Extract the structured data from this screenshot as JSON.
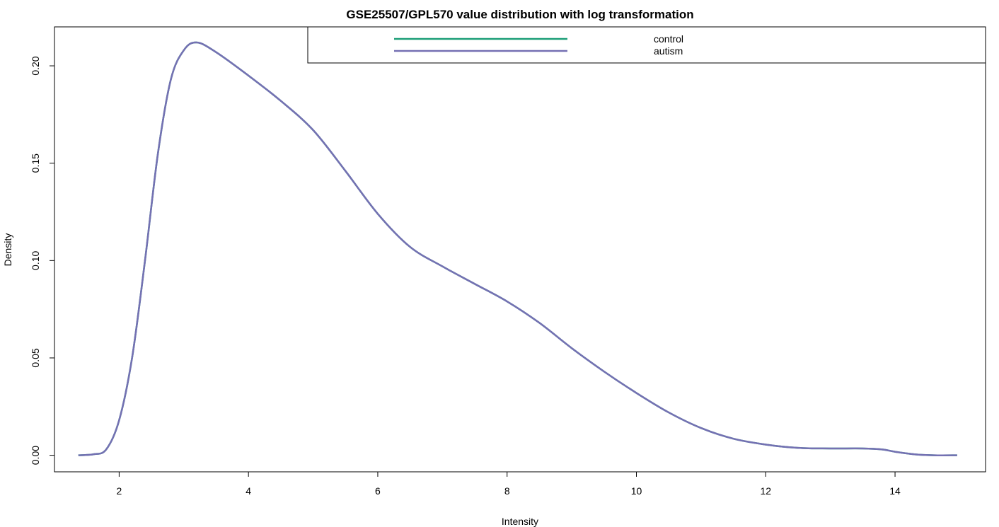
{
  "chart_data": {
    "type": "line",
    "title": "GSE25507/GPL570 value distribution with log transformation",
    "xlabel": "Intensity",
    "ylabel": "Density",
    "xlim": [
      1.0,
      15.4
    ],
    "ylim": [
      -0.0085,
      0.22
    ],
    "xticks": [
      2,
      4,
      6,
      8,
      10,
      12,
      14
    ],
    "xtick_labels": [
      "2",
      "4",
      "6",
      "8",
      "10",
      "12",
      "14"
    ],
    "yticks": [
      0.0,
      0.05,
      0.1,
      0.15,
      0.2
    ],
    "ytick_labels": [
      "0.00",
      "0.05",
      "0.10",
      "0.15",
      "0.20"
    ],
    "grid": false,
    "legend_position": "top-right",
    "legend": [
      {
        "label": "control",
        "color": "#1b9e77"
      },
      {
        "label": "autism",
        "color": "#7570b3"
      }
    ],
    "series": [
      {
        "name": "control",
        "color": "#1b9e77",
        "x": [
          1.37,
          1.6,
          1.8,
          2.0,
          2.2,
          2.4,
          2.6,
          2.8,
          3.0,
          3.2,
          3.5,
          4.0,
          4.5,
          5.0,
          5.5,
          6.0,
          6.5,
          7.0,
          7.5,
          8.0,
          8.5,
          9.0,
          9.5,
          10.0,
          10.5,
          11.0,
          11.5,
          12.0,
          12.5,
          13.0,
          13.5,
          13.8,
          14.0,
          14.3,
          14.6,
          14.96
        ],
        "y": [
          0.0,
          0.0005,
          0.003,
          0.018,
          0.05,
          0.1,
          0.155,
          0.193,
          0.208,
          0.212,
          0.207,
          0.195,
          0.182,
          0.167,
          0.146,
          0.124,
          0.107,
          0.097,
          0.088,
          0.079,
          0.068,
          0.055,
          0.043,
          0.032,
          0.022,
          0.014,
          0.0085,
          0.0055,
          0.0038,
          0.0035,
          0.0035,
          0.003,
          0.0018,
          0.0005,
          0.0,
          0.0
        ]
      },
      {
        "name": "autism",
        "color": "#7570b3",
        "x": [
          1.37,
          1.6,
          1.8,
          2.0,
          2.2,
          2.4,
          2.6,
          2.8,
          3.0,
          3.2,
          3.5,
          4.0,
          4.5,
          5.0,
          5.5,
          6.0,
          6.5,
          7.0,
          7.5,
          8.0,
          8.5,
          9.0,
          9.5,
          10.0,
          10.5,
          11.0,
          11.5,
          12.0,
          12.5,
          13.0,
          13.5,
          13.8,
          14.0,
          14.3,
          14.6,
          14.96
        ],
        "y": [
          0.0,
          0.0005,
          0.003,
          0.018,
          0.05,
          0.1,
          0.155,
          0.193,
          0.208,
          0.212,
          0.207,
          0.195,
          0.182,
          0.167,
          0.146,
          0.124,
          0.107,
          0.097,
          0.088,
          0.079,
          0.068,
          0.055,
          0.043,
          0.032,
          0.022,
          0.014,
          0.0085,
          0.0055,
          0.0038,
          0.0035,
          0.0035,
          0.003,
          0.0018,
          0.0005,
          0.0,
          0.0
        ]
      }
    ]
  }
}
